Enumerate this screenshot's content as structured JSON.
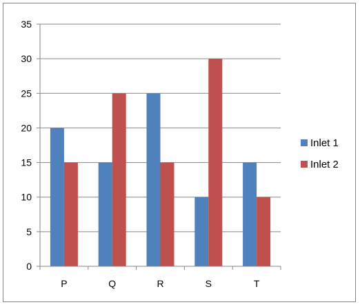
{
  "chart_data": {
    "type": "bar",
    "title": "",
    "xlabel": "",
    "ylabel": "",
    "categories": [
      "P",
      "Q",
      "R",
      "S",
      "T"
    ],
    "series": [
      {
        "name": "Inlet 1",
        "color": "#4F81BD",
        "values": [
          20,
          15,
          25,
          10,
          15
        ]
      },
      {
        "name": "Inlet 2",
        "color": "#C0504D",
        "values": [
          15,
          25,
          15,
          30,
          10
        ]
      }
    ],
    "ylim": [
      0,
      35
    ],
    "yticks": [
      "0",
      "5",
      "10",
      "15",
      "20",
      "25",
      "30",
      "35"
    ],
    "grid": true,
    "legend_position": "right"
  }
}
